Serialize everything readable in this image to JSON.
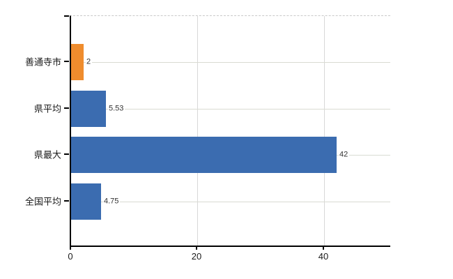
{
  "chart_data": {
    "type": "bar",
    "orientation": "horizontal",
    "title": "",
    "xlabel": "",
    "ylabel": "",
    "categories": [
      "善通寺市",
      "県平均",
      "県最大",
      "全国平均"
    ],
    "values": [
      2,
      5.53,
      42,
      4.75
    ],
    "value_labels": [
      "2",
      "5.53",
      "42",
      "4.75"
    ],
    "series_color": "#3b6cb0",
    "highlight_color": "#ef8c2d",
    "bar_colors": [
      "#ef8c2d",
      "#3b6cb0",
      "#3b6cb0",
      "#3b6cb0"
    ],
    "x_ticks": [
      0,
      20,
      40
    ],
    "x_tick_labels": [
      "0",
      "20",
      "40"
    ],
    "xlim": [
      0,
      50.7
    ],
    "grid": true,
    "legend": false,
    "gridline_color_h": "#d9dbd2",
    "gridline_color_v": "#d8d8d8",
    "axis_color": "#000000",
    "plot_top_border": "dashed"
  }
}
